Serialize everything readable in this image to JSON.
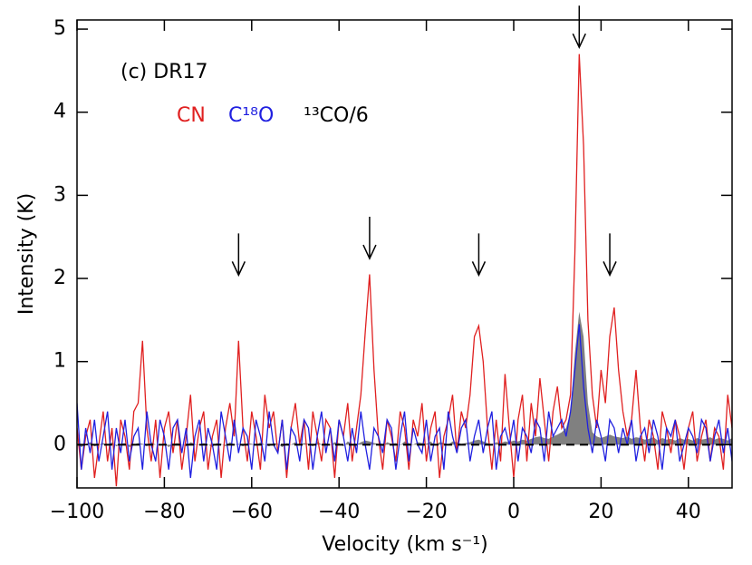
{
  "chart_data": {
    "type": "step",
    "annotation": "(c) DR17",
    "x_label": "Velocity (km s⁻¹)",
    "y_label": "Intensity (K)",
    "xlim": [
      -100,
      50
    ],
    "ylim": [
      -0.52,
      5.11
    ],
    "xticks": [
      {
        "value": -100,
        "label": "−100"
      },
      {
        "value": -80,
        "label": "−80"
      },
      {
        "value": -60,
        "label": "−60"
      },
      {
        "value": -40,
        "label": "−40"
      },
      {
        "value": -20,
        "label": "−20"
      },
      0,
      20,
      40
    ],
    "yticks": [
      0,
      1,
      2,
      3,
      4,
      5
    ],
    "hline": 0,
    "arrows": [
      {
        "x": -63,
        "y": 2.04
      },
      {
        "x": -33,
        "y": 2.24
      },
      {
        "x": -8,
        "y": 2.04
      },
      {
        "x": 15,
        "y": 4.78
      },
      {
        "x": 22,
        "y": 2.04
      }
    ],
    "x": [
      -100,
      -99,
      -98,
      -97,
      -96,
      -95,
      -94,
      -93,
      -92,
      -91,
      -90,
      -89,
      -88,
      -87,
      -86,
      -85,
      -84,
      -83,
      -82,
      -81,
      -80,
      -79,
      -78,
      -77,
      -76,
      -75,
      -74,
      -73,
      -72,
      -71,
      -70,
      -69,
      -68,
      -67,
      -66,
      -65,
      -64,
      -63,
      -62,
      -61,
      -60,
      -59,
      -58,
      -57,
      -56,
      -55,
      -54,
      -53,
      -52,
      -51,
      -50,
      -49,
      -48,
      -47,
      -46,
      -45,
      -44,
      -43,
      -42,
      -41,
      -40,
      -39,
      -38,
      -37,
      -36,
      -35,
      -34,
      -33,
      -32,
      -31,
      -30,
      -29,
      -28,
      -27,
      -26,
      -25,
      -24,
      -23,
      -22,
      -21,
      -20,
      -19,
      -18,
      -17,
      -16,
      -15,
      -14,
      -13,
      -12,
      -11,
      -10,
      -9,
      -8,
      -7,
      -6,
      -5,
      -4,
      -3,
      -2,
      -1,
      0,
      1,
      2,
      3,
      4,
      5,
      6,
      7,
      8,
      9,
      10,
      11,
      12,
      13,
      14,
      15,
      16,
      17,
      18,
      19,
      20,
      21,
      22,
      23,
      24,
      25,
      26,
      27,
      28,
      29,
      30,
      31,
      32,
      33,
      34,
      35,
      36,
      37,
      38,
      39,
      40,
      41,
      42,
      43,
      44,
      45,
      46,
      47,
      48,
      49,
      50
    ],
    "series": [
      {
        "name": "¹³CO/6",
        "color": "#808080",
        "fill": true,
        "values": [
          0.02,
          -0.03,
          0.01,
          0.03,
          -0.02,
          0.0,
          0.02,
          -0.01,
          0.03,
          -0.02,
          0.01,
          0.02,
          -0.03,
          0.0,
          0.02,
          0.01,
          -0.02,
          0.03,
          0.0,
          -0.01,
          0.02,
          -0.03,
          0.01,
          0.02,
          0.0,
          -0.02,
          0.03,
          0.01,
          -0.01,
          0.02,
          0.0,
          -0.03,
          0.02,
          0.01,
          -0.02,
          0.03,
          0.0,
          0.01,
          -0.02,
          0.02,
          0.01,
          -0.01,
          0.03,
          0.0,
          -0.02,
          0.02,
          0.01,
          -0.03,
          0.02,
          0.0,
          0.03,
          -0.01,
          0.02,
          0.01,
          -0.02,
          0.04,
          0.0,
          0.02,
          -0.01,
          0.03,
          0.02,
          -0.02,
          0.04,
          0.01,
          0.0,
          0.03,
          0.05,
          0.04,
          0.02,
          0.01,
          -0.02,
          0.03,
          0.01,
          0.02,
          -0.01,
          0.04,
          0.02,
          0.0,
          0.03,
          0.02,
          0.01,
          0.04,
          -0.01,
          0.03,
          0.02,
          0.0,
          0.04,
          0.03,
          0.01,
          0.02,
          0.03,
          0.05,
          0.06,
          0.04,
          0.02,
          0.0,
          0.03,
          0.02,
          0.04,
          0.03,
          0.05,
          0.04,
          0.06,
          0.05,
          0.07,
          0.09,
          0.1,
          0.08,
          0.07,
          0.1,
          0.12,
          0.15,
          0.2,
          0.4,
          1.1,
          1.6,
          1.3,
          0.5,
          0.15,
          0.1,
          0.08,
          0.1,
          0.12,
          0.1,
          0.09,
          0.08,
          0.1,
          0.07,
          0.09,
          0.08,
          0.06,
          0.07,
          0.09,
          0.05,
          0.08,
          0.06,
          0.07,
          0.05,
          0.08,
          0.06,
          0.07,
          0.05,
          0.08,
          0.06,
          0.07,
          0.09,
          0.06,
          0.08,
          0.07,
          0.05,
          0.08
        ]
      },
      {
        "name": "CN",
        "color": "#e02020",
        "values": [
          0.2,
          -0.3,
          0.1,
          0.3,
          -0.4,
          0.0,
          0.4,
          -0.2,
          0.2,
          -0.5,
          0.3,
          0.1,
          -0.3,
          0.4,
          0.5,
          1.25,
          0.2,
          -0.2,
          0.3,
          -0.4,
          0.2,
          0.4,
          -0.1,
          0.3,
          -0.3,
          0.1,
          0.6,
          -0.2,
          0.2,
          0.4,
          -0.3,
          0.1,
          0.3,
          -0.4,
          0.2,
          0.5,
          0.1,
          1.25,
          0.2,
          -0.2,
          0.4,
          0.1,
          -0.3,
          0.6,
          0.2,
          0.4,
          -0.1,
          0.3,
          -0.4,
          0.2,
          0.5,
          0.0,
          0.3,
          -0.3,
          0.4,
          0.1,
          -0.2,
          0.3,
          0.2,
          -0.4,
          0.3,
          0.1,
          0.5,
          -0.2,
          0.2,
          0.6,
          1.35,
          2.05,
          0.9,
          0.1,
          -0.3,
          0.3,
          0.1,
          -0.2,
          0.4,
          0.2,
          -0.3,
          0.3,
          0.1,
          0.5,
          -0.2,
          0.2,
          0.4,
          -0.4,
          0.1,
          0.3,
          0.6,
          -0.1,
          0.4,
          0.2,
          0.6,
          1.3,
          1.43,
          1.0,
          0.2,
          -0.3,
          0.3,
          -0.2,
          0.85,
          0.2,
          -0.4,
          0.3,
          0.6,
          -0.2,
          0.5,
          0.1,
          0.8,
          0.3,
          -0.2,
          0.4,
          0.7,
          0.2,
          0.3,
          0.6,
          2.3,
          4.7,
          3.6,
          1.5,
          0.6,
          0.2,
          0.9,
          0.5,
          1.3,
          1.65,
          0.9,
          0.4,
          0.1,
          0.3,
          0.9,
          0.2,
          -0.2,
          0.3,
          0.1,
          -0.3,
          0.4,
          0.2,
          -0.1,
          0.3,
          0.1,
          -0.3,
          0.2,
          0.4,
          -0.2,
          0.1,
          0.3,
          -0.2,
          0.2,
          0.1,
          -0.3,
          0.6,
          0.2
        ]
      },
      {
        "name": "C¹⁸O",
        "color": "#2020e0",
        "values": [
          0.5,
          -0.3,
          0.2,
          -0.1,
          0.3,
          -0.2,
          0.1,
          0.4,
          -0.3,
          0.2,
          -0.1,
          0.3,
          -0.2,
          0.1,
          0.2,
          -0.3,
          0.4,
          0.0,
          -0.2,
          0.3,
          0.1,
          -0.3,
          0.2,
          0.3,
          -0.1,
          0.2,
          -0.4,
          0.1,
          0.3,
          -0.2,
          0.2,
          0.0,
          -0.3,
          0.4,
          0.1,
          -0.2,
          0.3,
          -0.1,
          0.2,
          0.1,
          -0.3,
          0.3,
          0.1,
          -0.2,
          0.4,
          0.0,
          -0.1,
          0.3,
          -0.3,
          0.2,
          0.1,
          -0.2,
          0.3,
          0.2,
          -0.3,
          0.1,
          0.4,
          -0.1,
          0.2,
          -0.2,
          0.3,
          0.1,
          -0.2,
          0.2,
          -0.1,
          0.4,
          0.0,
          -0.3,
          0.2,
          0.1,
          -0.1,
          0.3,
          0.2,
          -0.3,
          0.1,
          0.4,
          -0.2,
          0.2,
          0.0,
          -0.1,
          0.3,
          -0.2,
          0.1,
          0.2,
          -0.3,
          0.4,
          0.1,
          -0.1,
          0.2,
          0.3,
          -0.2,
          0.1,
          0.3,
          -0.1,
          0.2,
          0.4,
          -0.3,
          0.1,
          0.2,
          0.0,
          0.3,
          -0.2,
          0.2,
          0.1,
          -0.1,
          0.3,
          0.2,
          -0.2,
          0.4,
          0.1,
          0.2,
          0.3,
          0.1,
          0.4,
          0.9,
          1.45,
          0.7,
          0.2,
          -0.1,
          0.3,
          0.1,
          -0.2,
          0.3,
          0.2,
          -0.1,
          0.2,
          0.0,
          0.3,
          -0.2,
          0.1,
          0.2,
          -0.1,
          0.3,
          0.1,
          -0.3,
          0.2,
          0.1,
          0.3,
          -0.2,
          0.0,
          0.2,
          0.1,
          -0.1,
          0.3,
          0.2,
          -0.2,
          0.1,
          0.3,
          -0.1,
          0.2,
          -0.2
        ]
      }
    ]
  }
}
